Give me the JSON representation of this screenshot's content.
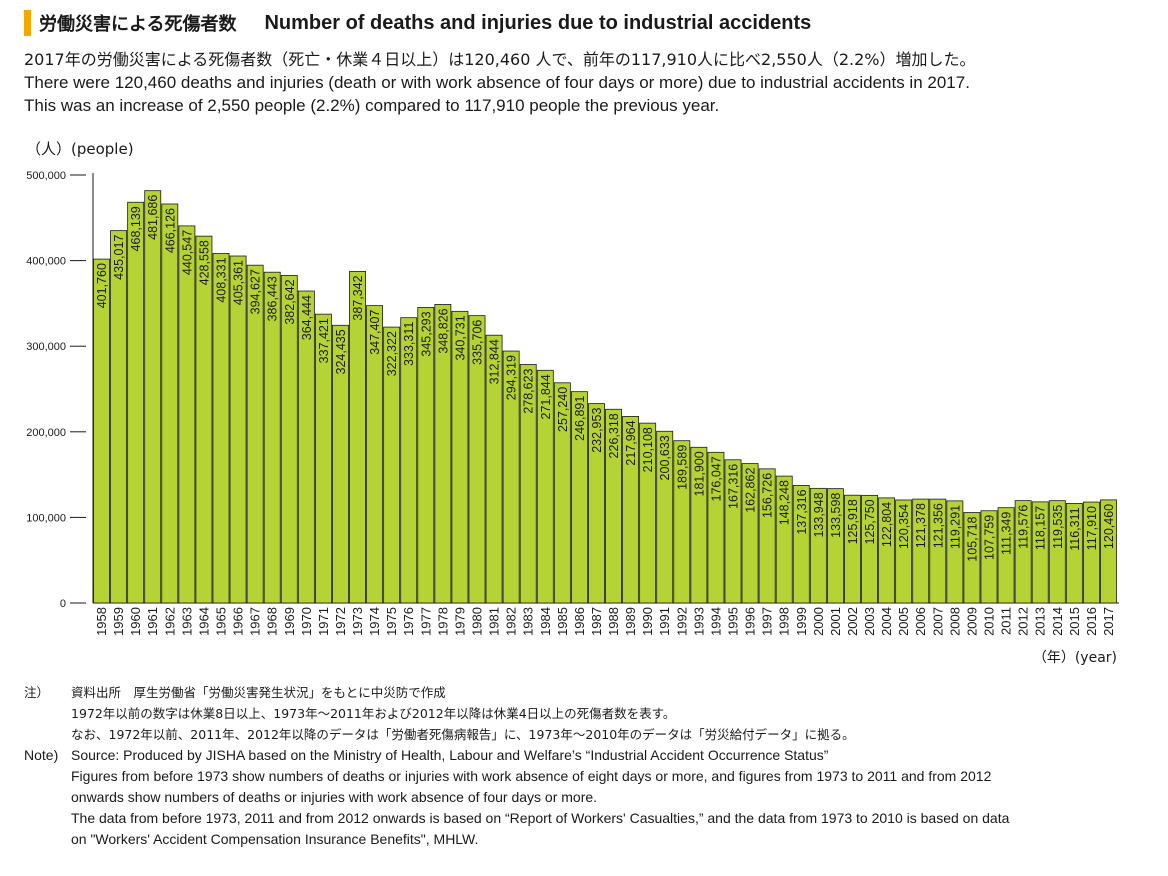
{
  "header": {
    "title_jp": "労働災害による死傷者数",
    "title_en": "Number of deaths and injuries due to industrial accidents",
    "accent_color": "#f5a800"
  },
  "summary": {
    "jp": "2017年の労働災害による死傷者数（死亡・休業４日以上）は120,460 人で、前年の117,910人に比べ2,550人（2.2%）増加した。",
    "en_line1": "There were 120,460 deaths and injuries (death or with work absence of four days or more)  due to industrial accidents in 2017.",
    "en_line2": "This was an increase of 2,550 people (2.2%) compared to 117,910 people the previous year."
  },
  "chart_data": {
    "type": "bar",
    "title": "",
    "ylabel": "（人）(people)",
    "xlabel": "（年）(year)",
    "ylim": [
      0,
      500000
    ],
    "yticks": [
      "0",
      "100,000",
      "200,000",
      "300,000",
      "400,000",
      "500,000"
    ],
    "bar_color": "#b5d334",
    "categories": [
      "1958",
      "1959",
      "1960",
      "1961",
      "1962",
      "1963",
      "1964",
      "1965",
      "1966",
      "1967",
      "1968",
      "1969",
      "1970",
      "1971",
      "1972",
      "1973",
      "1974",
      "1975",
      "1976",
      "1977",
      "1978",
      "1979",
      "1980",
      "1981",
      "1982",
      "1983",
      "1984",
      "1985",
      "1986",
      "1987",
      "1988",
      "1989",
      "1990",
      "1991",
      "1992",
      "1993",
      "1994",
      "1995",
      "1996",
      "1997",
      "1998",
      "1999",
      "2000",
      "2001",
      "2002",
      "2003",
      "2004",
      "2005",
      "2006",
      "2007",
      "2008",
      "2009",
      "2010",
      "2011",
      "2012",
      "2013",
      "2014",
      "2015",
      "2016",
      "2017"
    ],
    "values": [
      401760,
      435017,
      468139,
      481686,
      466126,
      440547,
      428558,
      408331,
      405361,
      394627,
      386443,
      382642,
      364444,
      337421,
      324435,
      387342,
      347407,
      322322,
      333311,
      345293,
      348826,
      340731,
      335706,
      312844,
      294319,
      278623,
      271844,
      257240,
      246891,
      232953,
      226318,
      217964,
      210108,
      200633,
      189589,
      181900,
      176047,
      167316,
      162862,
      156726,
      148248,
      137316,
      133948,
      133598,
      125918,
      125750,
      122804,
      120354,
      121378,
      121356,
      119291,
      105718,
      107759,
      111349,
      119576,
      118157,
      119535,
      116311,
      117910,
      120460
    ],
    "labels": [
      "401,760",
      "435,017",
      "468,139",
      "481,686",
      "466,126",
      "440,547",
      "428,558",
      "408,331",
      "405,361",
      "394,627",
      "386,443",
      "382,642",
      "364,444",
      "337,421",
      "324,435",
      "387,342",
      "347,407",
      "322,322",
      "333,311",
      "345,293",
      "348,826",
      "340,731",
      "335,706",
      "312,844",
      "294,319",
      "278,623",
      "271,844",
      "257,240",
      "246,891",
      "232,953",
      "226,318",
      "217,964",
      "210,108",
      "200,633",
      "189,589",
      "181,900",
      "176,047",
      "167,316",
      "162,862",
      "156,726",
      "148,248",
      "137,316",
      "133,948",
      "133,598",
      "125,918",
      "125,750",
      "122,804",
      "120,354",
      "121,378",
      "121,356",
      "119,291",
      "105,718",
      "107,759",
      "111,349",
      "119,576",
      "118,157",
      "119,535",
      "116,311",
      "117,910",
      "120,460"
    ]
  },
  "notes": {
    "jp_label": "注）",
    "jp_source": "資料出所　厚生労働省「労働災害発生状況」をもとに中災防で作成",
    "jp_line2": "1972年以前の数字は休業8日以上、1973年～2011年および2012年以降は休業4日以上の死傷者数を表す。",
    "jp_line3": "なお、1972年以前、2011年、2012年以降のデータは「労働者死傷病報告」に、1973年～2010年のデータは「労災給付データ」に拠る。",
    "en_label": "Note)",
    "en_source": "Source: Produced by JISHA based on the Ministry of Health, Labour and Welfare’s “Industrial Accident Occurrence Status”",
    "en_line2": "Figures from before 1973 show numbers of deaths or injuries with work absence of eight days or more, and figures from 1973 to 2011 and from 2012",
    "en_line3": "onwards show numbers of deaths or injuries with work absence of four days or more.",
    "en_line4": "The data from before 1973, 2011 and from 2012 onwards is based on “Report of Workers' Casualties,” and the data from 1973 to 2010 is based on data",
    "en_line5": "on \"Workers' Accident Compensation Insurance Benefits\", MHLW."
  }
}
